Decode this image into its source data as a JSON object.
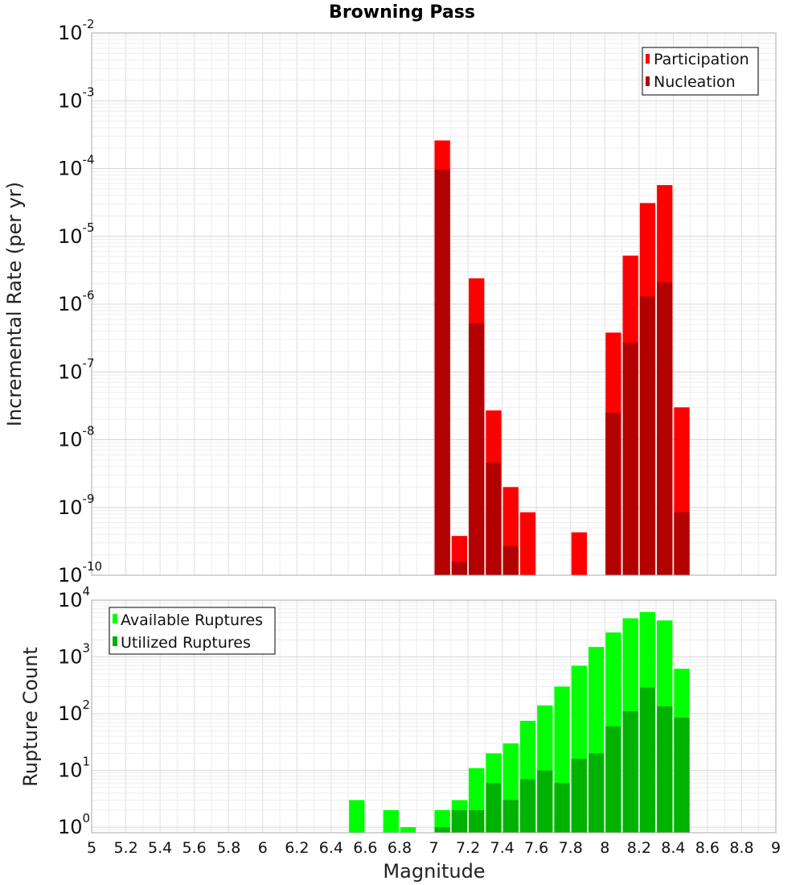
{
  "chart_data": [
    {
      "type": "bar",
      "title": "Browning Pass",
      "ylabel": "Incremental Rate (per yr)",
      "yscale": "log",
      "ylim": [
        1e-10,
        0.01
      ],
      "xlim": [
        5,
        9
      ],
      "grid": true,
      "legend_position": "top-right",
      "y_ticks": [
        {
          "base": "10",
          "exp": "-10",
          "value": 1e-10
        },
        {
          "base": "10",
          "exp": "-9",
          "value": 1e-09
        },
        {
          "base": "10",
          "exp": "-8",
          "value": 1e-08
        },
        {
          "base": "10",
          "exp": "-7",
          "value": 1e-07
        },
        {
          "base": "10",
          "exp": "-6",
          "value": 1e-06
        },
        {
          "base": "10",
          "exp": "-5",
          "value": 1e-05
        },
        {
          "base": "10",
          "exp": "-4",
          "value": 0.0001
        },
        {
          "base": "10",
          "exp": "-3",
          "value": 0.001
        },
        {
          "base": "10",
          "exp": "-2",
          "value": 0.01
        }
      ],
      "series": [
        {
          "name": "Participation",
          "color": "#ff0000",
          "x": [
            7.05,
            7.15,
            7.25,
            7.35,
            7.45,
            7.55,
            7.85,
            8.05,
            8.15,
            8.25,
            8.35,
            8.45
          ],
          "values": [
            0.00026,
            3.8e-10,
            2.4e-06,
            2.7e-08,
            2e-09,
            8.5e-10,
            4.3e-10,
            3.8e-07,
            5.2e-06,
            3.1e-05,
            5.7e-05,
            3e-08
          ]
        },
        {
          "name": "Nucleation",
          "color": "#b30000",
          "x": [
            7.05,
            7.15,
            7.25,
            7.35,
            7.45,
            8.05,
            8.15,
            8.25,
            8.35,
            8.45
          ],
          "values": [
            9.7e-05,
            1.6e-10,
            5.2e-07,
            4.6e-09,
            2.7e-10,
            2.5e-08,
            2.7e-07,
            1.3e-06,
            2.1e-06,
            8.5e-10
          ]
        }
      ]
    },
    {
      "type": "bar",
      "ylabel": "Rupture Count",
      "xlabel": "Magnitude",
      "yscale": "log",
      "ylim": [
        0.8,
        10000
      ],
      "xlim": [
        5,
        9
      ],
      "grid": true,
      "legend_position": "top-left",
      "x_ticks": [
        "5",
        "5.2",
        "5.4",
        "5.6",
        "5.8",
        "6",
        "6.2",
        "6.4",
        "6.6",
        "6.8",
        "7",
        "7.2",
        "7.4",
        "7.6",
        "7.8",
        "8",
        "8.2",
        "8.4",
        "8.6",
        "8.8",
        "9"
      ],
      "y_ticks": [
        {
          "base": "10",
          "exp": "0",
          "value": 1
        },
        {
          "base": "10",
          "exp": "1",
          "value": 10
        },
        {
          "base": "10",
          "exp": "2",
          "value": 100
        },
        {
          "base": "10",
          "exp": "3",
          "value": 1000
        },
        {
          "base": "10",
          "exp": "4",
          "value": 10000
        }
      ],
      "series": [
        {
          "name": "Available Ruptures",
          "color": "#00ff00",
          "x": [
            6.55,
            6.75,
            6.85,
            7.05,
            7.15,
            7.25,
            7.35,
            7.45,
            7.55,
            7.65,
            7.75,
            7.85,
            7.95,
            8.05,
            8.15,
            8.25,
            8.35,
            8.45
          ],
          "values": [
            3,
            2,
            1,
            2,
            3,
            11,
            20,
            30,
            75,
            140,
            300,
            700,
            1500,
            2700,
            4800,
            6200,
            4400,
            620
          ]
        },
        {
          "name": "Utilized Ruptures",
          "color": "#00b200",
          "x": [
            7.05,
            7.15,
            7.25,
            7.35,
            7.45,
            7.55,
            7.65,
            7.75,
            7.85,
            7.95,
            8.05,
            8.15,
            8.25,
            8.35,
            8.45
          ],
          "values": [
            1,
            2,
            2,
            6,
            3,
            7,
            10,
            6,
            16,
            20,
            60,
            110,
            290,
            135,
            85
          ]
        }
      ]
    }
  ]
}
